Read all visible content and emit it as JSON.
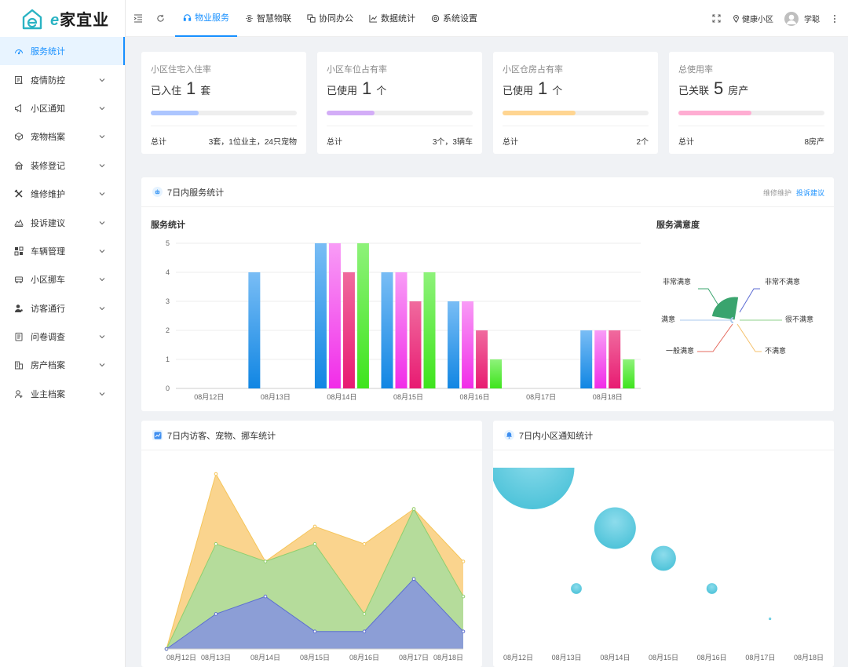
{
  "app": {
    "logo_text_e": "e",
    "logo_text_rest": "家宜业"
  },
  "sidebar": {
    "items": [
      {
        "label": "服务统计",
        "icon": "dashboard-icon",
        "active": true
      },
      {
        "label": "疫情防控",
        "icon": "epidemic-icon"
      },
      {
        "label": "小区通知",
        "icon": "megaphone-icon"
      },
      {
        "label": "宠物档案",
        "icon": "pet-icon"
      },
      {
        "label": "装修登记",
        "icon": "house-icon"
      },
      {
        "label": "维修维护",
        "icon": "tools-icon"
      },
      {
        "label": "投诉建议",
        "icon": "complaint-icon"
      },
      {
        "label": "车辆管理",
        "icon": "car-manage-icon"
      },
      {
        "label": "小区挪车",
        "icon": "car-move-icon"
      },
      {
        "label": "访客通行",
        "icon": "visitor-icon"
      },
      {
        "label": "问卷调查",
        "icon": "survey-icon"
      },
      {
        "label": "房产档案",
        "icon": "building-icon"
      },
      {
        "label": "业主档案",
        "icon": "owner-icon"
      }
    ]
  },
  "topnav": {
    "tabs": [
      {
        "label": "物业服务",
        "icon": "headset-icon",
        "active": true
      },
      {
        "label": "智慧物联",
        "icon": "iot-icon"
      },
      {
        "label": "协同办公",
        "icon": "office-icon"
      },
      {
        "label": "数据统计",
        "icon": "chart-icon"
      },
      {
        "label": "系统设置",
        "icon": "settings-icon"
      }
    ],
    "community": "健康小区",
    "user": "学聪"
  },
  "stats": [
    {
      "title": "小区住宅入住率",
      "prefix": "已入住",
      "value": "1",
      "unit": "套",
      "foot_label": "总计",
      "foot_value": "3套，1位业主，24只宠物",
      "progress": 0.33,
      "color": "#adc6ff"
    },
    {
      "title": "小区车位占有率",
      "prefix": "已使用",
      "value": "1",
      "unit": "个",
      "foot_label": "总计",
      "foot_value": "3个，3辆车",
      "progress": 0.33,
      "color": "#d3adf7"
    },
    {
      "title": "小区仓房占有率",
      "prefix": "已使用",
      "value": "1",
      "unit": "个",
      "foot_label": "总计",
      "foot_value": "2个",
      "progress": 0.5,
      "color": "#ffd591"
    },
    {
      "title": "总使用率",
      "prefix": "已关联",
      "value": "5",
      "unit": "房产",
      "foot_label": "总计",
      "foot_value": "8房产",
      "progress": 0.5,
      "color": "#ffadd2"
    }
  ],
  "service_panel": {
    "title": "7日内服务统计",
    "link1": "维修维护",
    "link2": "投诉建议",
    "bar_title": "服务统计",
    "satisfaction_title": "服务满意度"
  },
  "visitor_panel": {
    "title": "7日内访客、宠物、挪车统计"
  },
  "notice_panel": {
    "title": "7日内小区通知统计"
  },
  "chart_data": [
    {
      "type": "bar",
      "title": "服务统计",
      "categories": [
        "08月12日",
        "08月13日",
        "08月14日",
        "08月15日",
        "08月16日",
        "08月17日",
        "08月18日"
      ],
      "ylim": [
        0,
        5
      ],
      "yticks": [
        "0",
        "1",
        "2",
        "3",
        "4",
        "5"
      ],
      "series": [
        {
          "name": "s1",
          "values": [
            0,
            4,
            5,
            4,
            3,
            0,
            2
          ],
          "color_top": "#79bdf5",
          "color_bottom": "#1186e3"
        },
        {
          "name": "s2",
          "values": [
            0,
            0,
            5,
            4,
            3,
            0,
            2
          ],
          "color_top": "#f89cf6",
          "color_bottom": "#f12ce8"
        },
        {
          "name": "s3",
          "values": [
            0,
            0,
            4,
            3,
            2,
            0,
            2
          ],
          "color_top": "#f06a9e",
          "color_bottom": "#e81b72"
        },
        {
          "name": "s4",
          "values": [
            0,
            0,
            5,
            4,
            1,
            0,
            1
          ],
          "color_top": "#8ef27a",
          "color_bottom": "#3ee41d"
        }
      ]
    },
    {
      "type": "pie",
      "title": "服务满意度",
      "labels": [
        "非常满意",
        "满意",
        "一般满意",
        "不满意",
        "很不满意",
        "非常不满意"
      ],
      "values": [
        1,
        0,
        0,
        0,
        0,
        0
      ],
      "colors": [
        "#3aa46e",
        "#a8c8ee",
        "#e56b5f",
        "#f5c16c",
        "#8fd18b",
        "#5b6bd3"
      ]
    },
    {
      "type": "area",
      "title": "7日内访客、宠物、挪车统计",
      "categories": [
        "08月12日",
        "08月13日",
        "08月14日",
        "08月15日",
        "08月16日",
        "08月17日",
        "08月18日"
      ],
      "ylim": [
        0,
        10
      ],
      "series": [
        {
          "name": "series-blue",
          "values": [
            0,
            2,
            3,
            1,
            1,
            4,
            1
          ],
          "color": "#8c9ed6",
          "line": "#5c6fd0"
        },
        {
          "name": "series-green",
          "values": [
            0,
            6,
            5,
            6,
            2,
            8,
            3
          ],
          "color": "#b5dc9b",
          "line": "#8fcf6f"
        },
        {
          "name": "series-orange",
          "values": [
            0,
            10,
            5,
            7,
            6,
            8,
            5
          ],
          "color": "#fad48e",
          "line": "#f5c55a"
        }
      ]
    },
    {
      "type": "scatter",
      "title": "7日内小区通知统计",
      "categories": [
        "08月12日",
        "08月13日",
        "08月14日",
        "08月15日",
        "08月16日",
        "08月17日",
        "08月18日"
      ],
      "ylim": [
        0,
        6
      ],
      "points": [
        {
          "x": 1.3,
          "y": 6,
          "size": 10
        },
        {
          "x": 3,
          "y": 4,
          "size": 5
        },
        {
          "x": 4,
          "y": 3,
          "size": 3
        },
        {
          "x": 2.2,
          "y": 2,
          "size": 1.3
        },
        {
          "x": 5,
          "y": 2,
          "size": 1.3
        },
        {
          "x": 6.2,
          "y": 1,
          "size": 0.3
        }
      ],
      "color": "#4ec3d9"
    }
  ]
}
